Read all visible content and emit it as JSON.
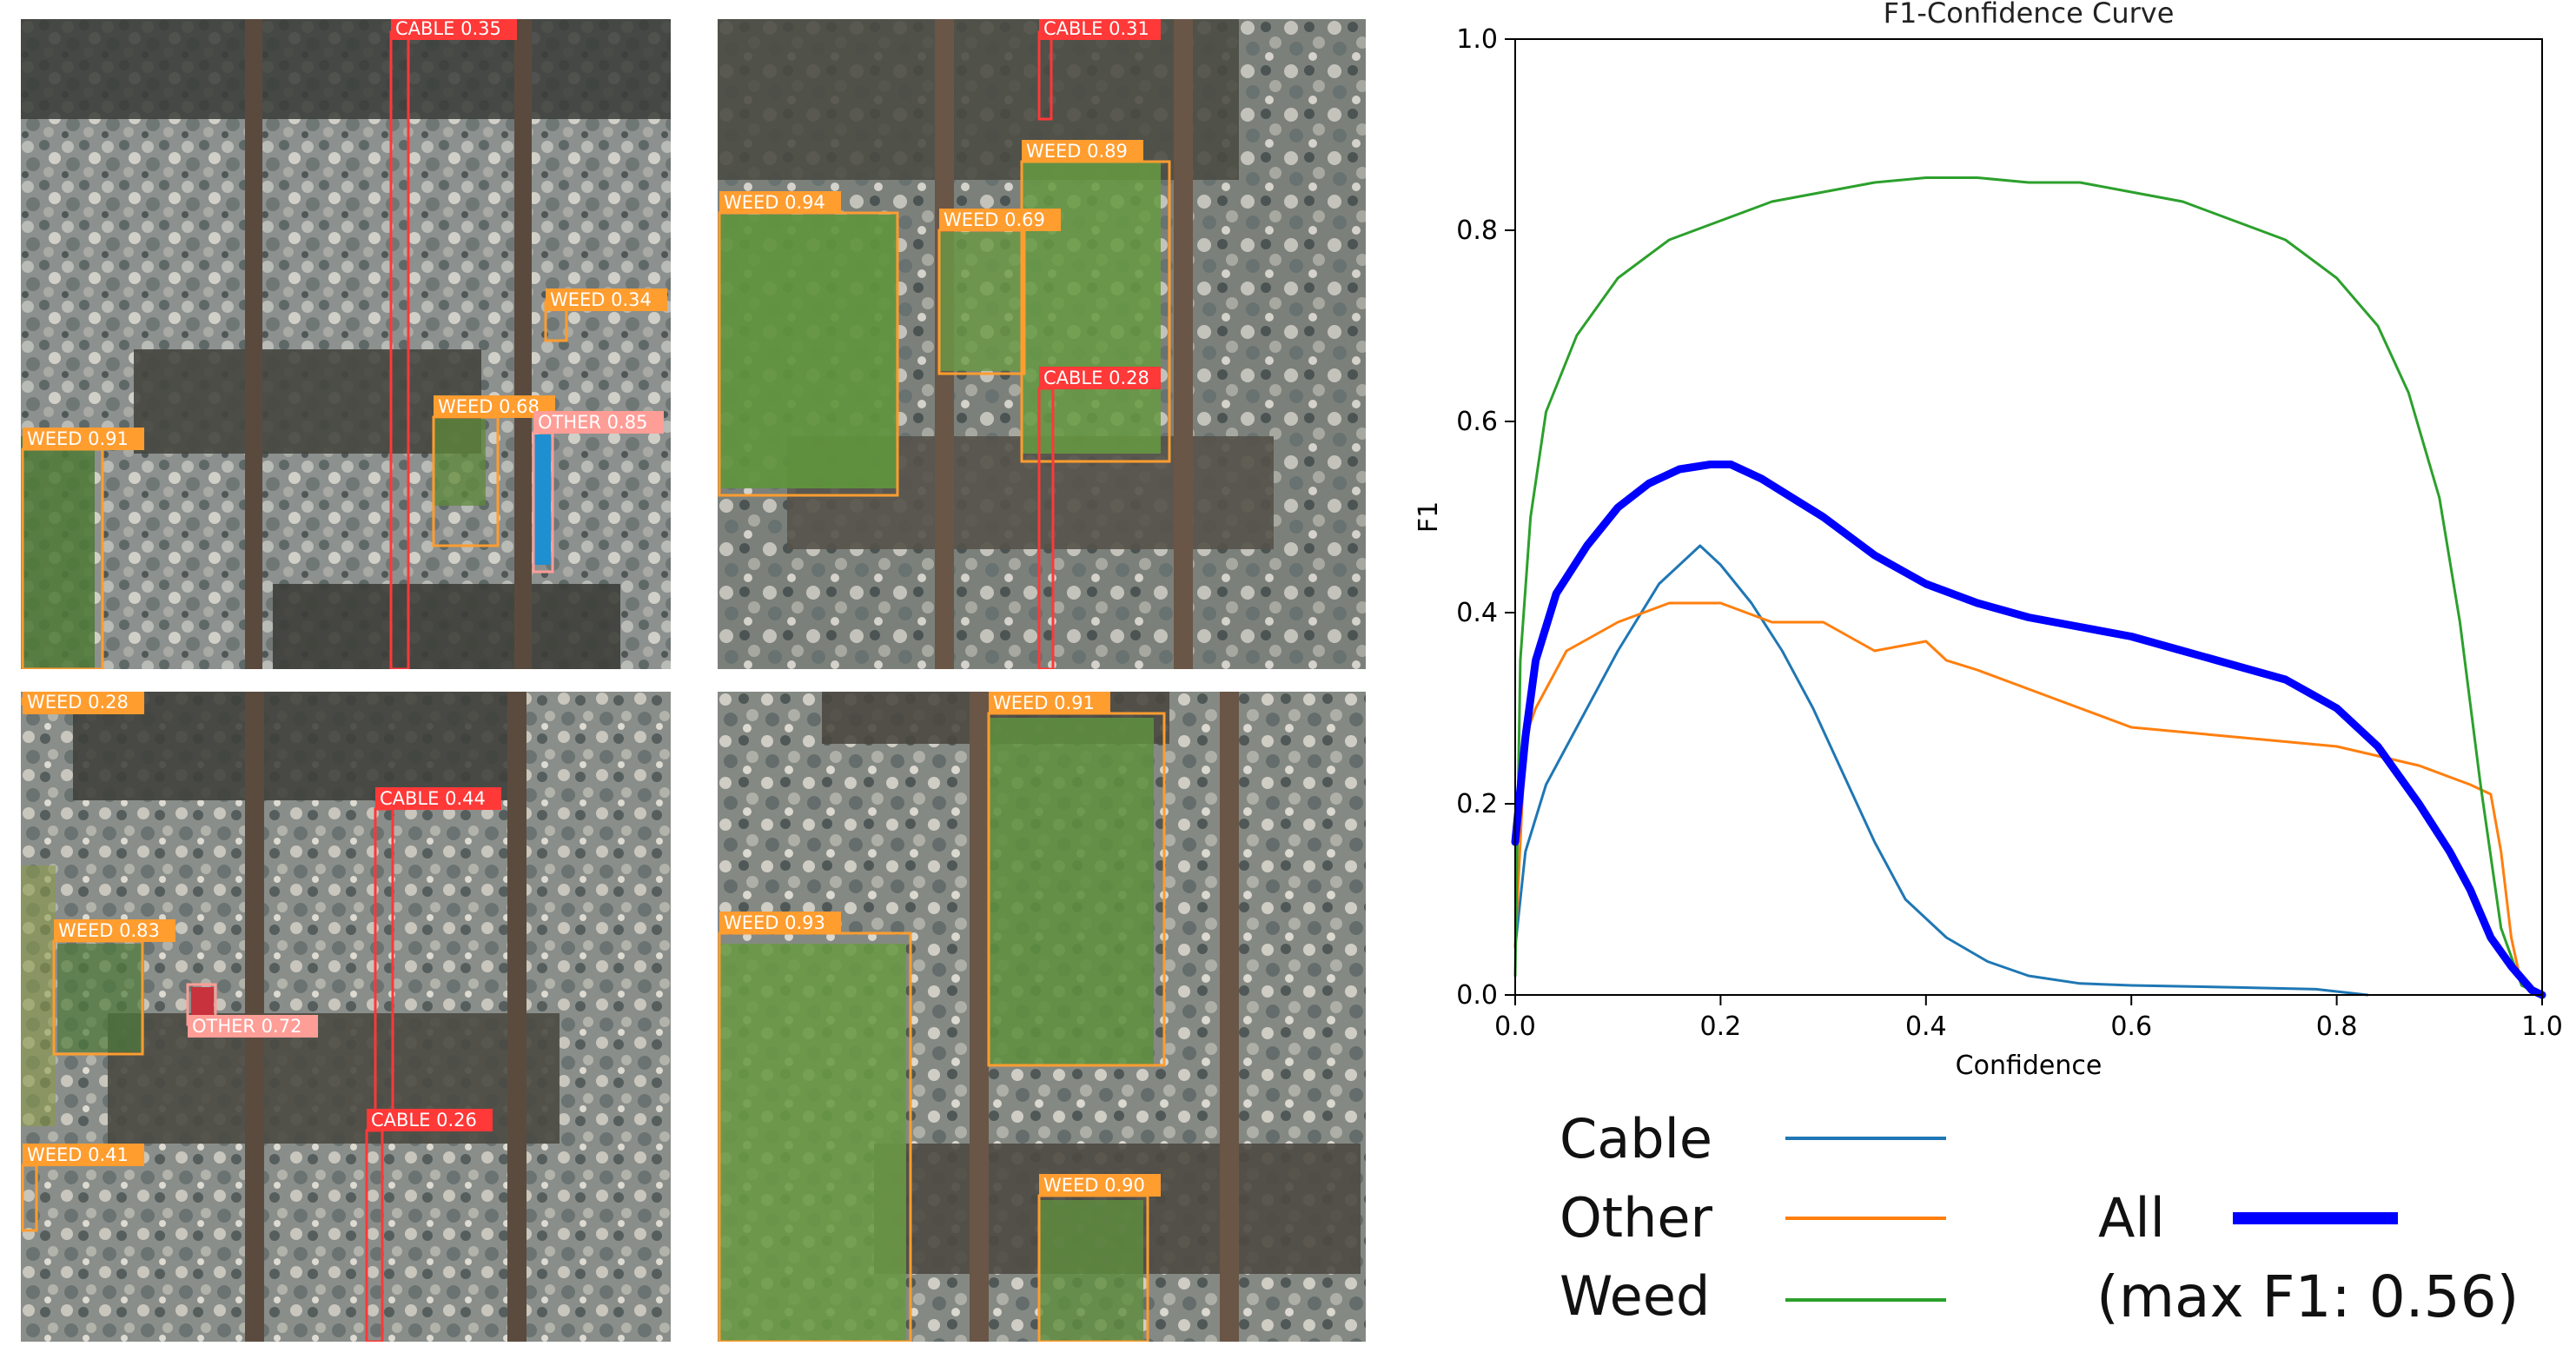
{
  "panels": [
    {
      "detections": [
        {
          "label": "CABLE 0.35",
          "color": "#ff3838"
        },
        {
          "label": "WEED 0.34",
          "color": "#ff9d2f"
        },
        {
          "label": "WEED 0.91",
          "color": "#ff9d2f"
        },
        {
          "label": "WEED 0.68",
          "color": "#ff9d2f"
        },
        {
          "label": "OTHER 0.85",
          "color": "#ff9d97"
        }
      ]
    },
    {
      "detections": [
        {
          "label": "CABLE 0.31",
          "color": "#ff3838"
        },
        {
          "label": "WEED 0.89",
          "color": "#ff9d2f"
        },
        {
          "label": "WEED 0.94",
          "color": "#ff9d2f"
        },
        {
          "label": "WEED 0.69",
          "color": "#ff9d2f"
        },
        {
          "label": "CABLE 0.28",
          "color": "#ff3838"
        }
      ]
    },
    {
      "detections": [
        {
          "label": "WEED 0.28",
          "color": "#ff9d2f"
        },
        {
          "label": "CABLE 0.44",
          "color": "#ff3838"
        },
        {
          "label": "WEED 0.83",
          "color": "#ff9d2f"
        },
        {
          "label": "OTHER 0.72",
          "color": "#ff9d97"
        },
        {
          "label": "CABLE 0.26",
          "color": "#ff3838"
        },
        {
          "label": "WEED 0.41",
          "color": "#ff9d2f"
        }
      ]
    },
    {
      "detections": [
        {
          "label": "WEED 0.91",
          "color": "#ff9d2f"
        },
        {
          "label": "WEED 0.93",
          "color": "#ff9d2f"
        },
        {
          "label": "WEED 0.90",
          "color": "#ff9d2f"
        }
      ]
    }
  ],
  "chart_data": {
    "type": "line",
    "title": "F1-Confidence Curve",
    "xlabel": "Confidence",
    "ylabel": "F1",
    "xlim": [
      0,
      1
    ],
    "ylim": [
      0,
      1
    ],
    "xticks": [
      "0.0",
      "0.2",
      "0.4",
      "0.6",
      "0.8",
      "1.0"
    ],
    "yticks": [
      "0.0",
      "0.2",
      "0.4",
      "0.6",
      "0.8",
      "1.0"
    ],
    "grid": false,
    "legend_position": "bottom",
    "series": [
      {
        "name": "Cable",
        "color": "#1f77b4",
        "width": "thin",
        "x": [
          0,
          0.01,
          0.03,
          0.06,
          0.1,
          0.14,
          0.18,
          0.2,
          0.23,
          0.26,
          0.29,
          0.32,
          0.35,
          0.38,
          0.42,
          0.46,
          0.5,
          0.55,
          0.6,
          0.7,
          0.78,
          0.83
        ],
        "y": [
          0.05,
          0.15,
          0.22,
          0.28,
          0.36,
          0.43,
          0.47,
          0.45,
          0.41,
          0.36,
          0.3,
          0.23,
          0.16,
          0.1,
          0.06,
          0.035,
          0.02,
          0.012,
          0.01,
          0.008,
          0.006,
          0
        ]
      },
      {
        "name": "Other",
        "color": "#ff7f0e",
        "width": "thin",
        "x": [
          0,
          0.01,
          0.02,
          0.05,
          0.1,
          0.15,
          0.2,
          0.25,
          0.3,
          0.35,
          0.4,
          0.42,
          0.45,
          0.5,
          0.55,
          0.6,
          0.7,
          0.8,
          0.88,
          0.93,
          0.95,
          0.96,
          0.97,
          0.98,
          1.0
        ],
        "y": [
          0.05,
          0.27,
          0.3,
          0.36,
          0.39,
          0.41,
          0.41,
          0.39,
          0.39,
          0.36,
          0.37,
          0.35,
          0.34,
          0.32,
          0.3,
          0.28,
          0.27,
          0.26,
          0.24,
          0.22,
          0.21,
          0.15,
          0.06,
          0.01,
          0
        ]
      },
      {
        "name": "Weed",
        "color": "#2ca02c",
        "width": "thin",
        "x": [
          0,
          0.005,
          0.015,
          0.03,
          0.06,
          0.1,
          0.15,
          0.2,
          0.25,
          0.3,
          0.35,
          0.4,
          0.45,
          0.5,
          0.55,
          0.6,
          0.65,
          0.7,
          0.75,
          0.8,
          0.84,
          0.87,
          0.9,
          0.92,
          0.94,
          0.96,
          0.98,
          1.0
        ],
        "y": [
          0.02,
          0.35,
          0.5,
          0.61,
          0.69,
          0.75,
          0.79,
          0.81,
          0.83,
          0.84,
          0.85,
          0.855,
          0.855,
          0.85,
          0.85,
          0.84,
          0.83,
          0.81,
          0.79,
          0.75,
          0.7,
          0.63,
          0.52,
          0.39,
          0.22,
          0.07,
          0.01,
          0
        ]
      },
      {
        "name": "All",
        "color": "#0000ff",
        "width": "thick",
        "x": [
          0,
          0.01,
          0.02,
          0.04,
          0.07,
          0.1,
          0.13,
          0.16,
          0.19,
          0.21,
          0.24,
          0.27,
          0.3,
          0.35,
          0.4,
          0.45,
          0.5,
          0.55,
          0.6,
          0.65,
          0.7,
          0.75,
          0.8,
          0.84,
          0.88,
          0.91,
          0.93,
          0.95,
          0.97,
          0.99,
          1.0
        ],
        "y": [
          0.16,
          0.27,
          0.35,
          0.42,
          0.47,
          0.51,
          0.535,
          0.55,
          0.555,
          0.555,
          0.54,
          0.52,
          0.5,
          0.46,
          0.43,
          0.41,
          0.395,
          0.385,
          0.375,
          0.36,
          0.345,
          0.33,
          0.3,
          0.26,
          0.2,
          0.15,
          0.11,
          0.06,
          0.03,
          0.005,
          0
        ]
      }
    ],
    "legend": {
      "entries": [
        "Cable",
        "Other",
        "Weed",
        "All"
      ],
      "note": "(max F1: 0.56)"
    }
  }
}
